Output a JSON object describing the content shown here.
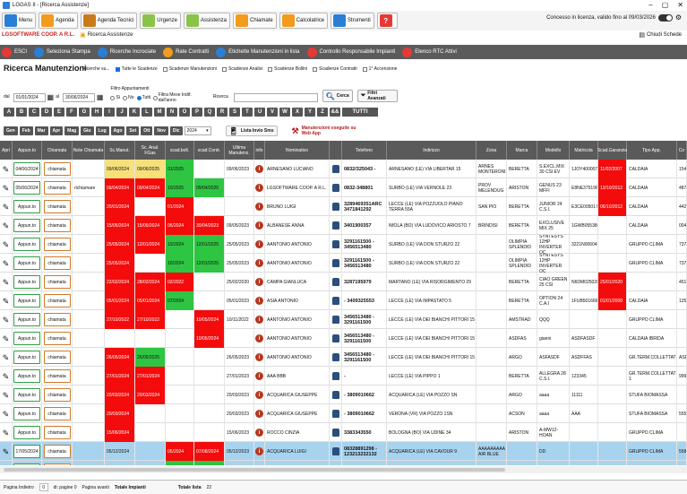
{
  "window": {
    "title": "LGGAS II - [Ricerca Assistenze]",
    "controls": [
      "–",
      "▢",
      "✕"
    ]
  },
  "toolbar": {
    "items": [
      {
        "label": "Menu",
        "icon": "menu-icon",
        "color": "#2a7fd4"
      },
      {
        "label": "Agenda",
        "icon": "agenda-icon",
        "color": "#f29b1c"
      },
      {
        "label": "Agenda Tecnici",
        "icon": "agenda-tecnici-icon",
        "color": "#c97a1a"
      },
      {
        "label": "Urgenze",
        "icon": "urgenze-icon",
        "color": "#8bc34a"
      },
      {
        "label": "Assistenza",
        "icon": "assistenza-icon",
        "color": "#8bc34a"
      },
      {
        "label": "Chiamate",
        "icon": "chiamate-icon",
        "color": "#f29b1c"
      },
      {
        "label": "Calcolatrice",
        "icon": "calcolatrice-icon",
        "color": "#f29b1c"
      },
      {
        "label": "Strumenti",
        "icon": "strumenti-icon",
        "color": "#2a7fd4"
      },
      {
        "label": "?",
        "icon": "help-icon",
        "color": "#e53935"
      }
    ],
    "license": "Concesso in licenza, valido fino al 09/03/2026"
  },
  "breadcrumb": {
    "company": "LGSOFTWARE COOP. A R.L.",
    "current": "Ricerca Assistenze",
    "close_all": "Chiudi Schede"
  },
  "actionbar": {
    "items": [
      {
        "label": "ESCI",
        "color": "#e53935"
      },
      {
        "label": "Seleziona Stampa",
        "color": "#2a7fd4"
      },
      {
        "label": "Ricerche Incrociate",
        "color": "#2a7fd4"
      },
      {
        "label": "Rate Contratti",
        "color": "#f29b1c"
      },
      {
        "label": "Etichette Manutenzioni in lista",
        "color": "#2a7fd4"
      },
      {
        "label": "Controllo Responsabile Impianti",
        "color": "#e53935"
      },
      {
        "label": "Elenco RTC Attivi",
        "color": "#e53935"
      }
    ]
  },
  "page": {
    "heading": "Ricerca Manutenzioni",
    "search_on": "Ricerche su..."
  },
  "search_options": [
    {
      "label": "Tutte le Scadenze",
      "checked": true
    },
    {
      "label": "Scadenze Manutenzioni",
      "checked": false
    },
    {
      "label": "Scadenze Analisi",
      "checked": false
    },
    {
      "label": "Scadenze Bollini",
      "checked": false
    },
    {
      "label": "Scadenze Contratti",
      "checked": false
    },
    {
      "label": "1° Accensione",
      "checked": false
    }
  ],
  "filters": {
    "dal_label": "dal",
    "dal_value": "01/01/2024",
    "al_label": "al",
    "al_value": "30/06/2024",
    "filtro_title": "Filtro Appuntamenti",
    "filtro_options": [
      {
        "label": "Sì",
        "checked": false
      },
      {
        "label": "No",
        "checked": false
      },
      {
        "label": "Tutti",
        "checked": true
      },
      {
        "label": "Filtra Mese Indif. dall'anno",
        "checked": false
      }
    ],
    "ricerca_label": "Ricerca",
    "cerca_label": "Cerca",
    "filtri_avanzati_label": "Filtri Avanzati"
  },
  "letters": [
    "A",
    "B",
    "C",
    "D",
    "E",
    "F",
    "G",
    "H",
    "I",
    "J",
    "K",
    "L",
    "M",
    "N",
    "O",
    "P",
    "Q",
    "R",
    "S",
    "T",
    "U",
    "V",
    "W",
    "X",
    "Y",
    "Z",
    "&&"
  ],
  "letters_all": "TUTTI",
  "months": [
    "Gen",
    "Feb",
    "Mar",
    "Apr",
    "Mag",
    "Giu",
    "Lug",
    "Ago",
    "Set",
    "Ott",
    "Nov",
    "Dic"
  ],
  "year": "2024",
  "lista_invio_sms": "Lista Invio Sms",
  "manutenzioni_web": "Manutenzioni eseguite su Web App",
  "columns": [
    "Apri",
    "Appun.to",
    "Chiamata",
    "Note Chiamata",
    "Sc.Manut.",
    "Sc. Anal. FGas",
    "scad.boll.",
    "scad.Contr.",
    "Ultima Manutenz.",
    "info",
    "Nominativo",
    "",
    "Telefono",
    "Indirizzo",
    "Zona",
    "Marca",
    "Modello",
    "Matricola",
    "Scad.Garanzia",
    "Tipo App.",
    "Co"
  ],
  "rows": [
    {
      "appunto": "04/06/2024",
      "chiamata": "chiamata",
      "note": "",
      "man": "09/06/2024",
      "an": "09/06/2025",
      "boll": "01/2025",
      "contr": "",
      "ult": "09/06/2023",
      "nome": "ARNESANO LUCIANO",
      "tel": "0832/325043 -",
      "ind": "ARNESANO (LE) VIA LIBERTAR 15",
      "zona": "ARNES MONTERONI",
      "marca": "BERETTA",
      "mod": "S.EXCL.MIX 30 CSI EV",
      "matr": "1JOY400007D",
      "gar": "11/02/2007",
      "tipo": "CALDAIA",
      "co": "154"
    },
    {
      "appunto": "05/06/2024",
      "chiamata": "chiamata",
      "note": "richiamare",
      "man": "09/04/2024",
      "an": "09/04/2024",
      "boll": "10/2025",
      "contr": "09/04/2025",
      "ult": "",
      "nome": "LGSOFTWARE COOP. A R.L.",
      "tel": "0832-348801",
      "ind": "SURBO (LE) VIA VERNOLE 23",
      "zona": "PROV MELENDUG",
      "marca": "ARISTON",
      "mod": "GENUS 23 MFFI",
      "matr": "E8NE3751966",
      "gar": "13/10/2012",
      "tipo": "CALDAIA",
      "co": "487"
    },
    {
      "appunto": "Appun.to",
      "chiamata": "chiamata",
      "note": "",
      "man": "20/01/2024",
      "an": "",
      "boll": "01/2024",
      "contr": "",
      "ult": "",
      "nome": "BRUNO LUIGI",
      "tel": "3289469351ARC 3471841292",
      "ind": "LECCE (LE) VIA POZZUOLO PIANO TERRA 55A",
      "zona": "SAN PIO",
      "marca": "BERETTA",
      "mod": "JUNIOR 24 C.S.I.",
      "matr": "E3CE0050171",
      "gar": "06/10/2012",
      "tipo": "CALDAIA",
      "co": "442"
    },
    {
      "appunto": "Appun.to",
      "chiamata": "chiamata",
      "note": "",
      "man": "15/05/2024",
      "an": "15/05/2024",
      "boll": "05/2024",
      "contr": "30/04/2023",
      "ult": "09/05/2023",
      "nome": "ALBANESE ANNA",
      "tel": "3401900357",
      "ind": "IMOLA (BO) VIA LUDOVICO ARIOSTO 7",
      "zona": "BRINDISI",
      "marca": "BERETTA",
      "mod": "EXCLUSIVE MIX 25",
      "matr": "1GWB0553807",
      "gar": "",
      "tipo": "CALDAIA",
      "co": "004"
    },
    {
      "appunto": "Appun.to",
      "chiamata": "chiamata",
      "note": "",
      "man": "25/05/2024",
      "an": "12/01/2024",
      "boll": "10/2024",
      "contr": "12/01/2025",
      "ult": "25/05/2023",
      "nome": "AANTONIO ANTONIO",
      "tel": "3291161500 - 3456513480",
      "ind": "SURBO (LE) VIA DON STURZO 22",
      "zona": "",
      "marca": "OLIMPIA SPLENDID",
      "mod": "SYNTESYS 12HP INVERTER OC",
      "matr": "3221N0060410",
      "gar": "",
      "tipo": "GRUPPO CLIMA",
      "co": "737"
    },
    {
      "appunto": "Appun.to",
      "chiamata": "chiamata",
      "note": "",
      "man": "25/05/2024",
      "an": "",
      "boll": "10/2024",
      "contr": "12/01/2025",
      "ult": "25/05/2023",
      "nome": "AANTONIO ANTONIO",
      "tel": "3291161500 - 3456513480",
      "ind": "SURBO (LE) VIA DON STURZO 22",
      "zona": "",
      "marca": "OLIMPIA SPLENDID",
      "mod": "SYNTESYS 12HP INVERTER OC",
      "matr": "",
      "gar": "",
      "tipo": "GRUPPO CLIMA",
      "co": "737"
    },
    {
      "appunto": "Appun.to",
      "chiamata": "chiamata",
      "note": "",
      "man": "22/02/2024",
      "an": "28/02/2024",
      "boll": "02/2022",
      "contr": "",
      "ult": "25/02/2020",
      "nome": "CAMPA GIANLUCA",
      "tel": "3287195979",
      "ind": "MARTANO (LE) VIA RISORGIMENTO 29",
      "zona": "",
      "marca": "BERETTA",
      "mod": "CIAO GREEN 25 CSI",
      "matr": "N6DM0250280",
      "gar": "25/01/2020",
      "tipo": "",
      "co": "451"
    },
    {
      "appunto": "Appun.to",
      "chiamata": "chiamata",
      "note": "",
      "man": "05/01/2024",
      "an": "05/01/2024",
      "boll": "07/2024",
      "contr": "",
      "ult": "05/01/2023",
      "nome": "ASIA ANTONIO",
      "tel": "- 3409325553",
      "ind": "LECCE (LE) VIA IMPASTATO 5",
      "zona": "",
      "marca": "BERETTA",
      "mod": "OPTION 24 C.A.I",
      "matr": "1FUB501666",
      "gar": "01/01/2008",
      "tipo": "CALDAIA",
      "co": "125"
    },
    {
      "appunto": "Appun.to",
      "chiamata": "chiamata",
      "note": "",
      "man": "27/10/2022",
      "an": "27/10/2022",
      "boll": "",
      "contr": "10/05/2024",
      "ult": "10/11/2022",
      "nome": "AANTONIO ANTONIO",
      "tel": "3456513480 - 3291161500",
      "ind": "LECCE (LE) VIA DEI BIANCHI PITTORI 15",
      "zona": "",
      "marca": "AMSTRAD",
      "mod": "QQQ",
      "matr": "",
      "gar": "",
      "tipo": "GRUPPO CLIMA",
      "co": ""
    },
    {
      "appunto": "Appun.to",
      "chiamata": "chiamata",
      "note": "",
      "man": "",
      "an": "",
      "boll": "",
      "contr": "10/05/2024",
      "ult": "",
      "nome": "AANTONIO ANTONIO",
      "tel": "3456513480 - 3291161500",
      "ind": "LECCE (LE) VIA DEI BIANCHI PITTORI 15",
      "zona": "",
      "marca": "ASDFAS",
      "mod": "gianni",
      "matr": "ASDFASDF",
      "gar": "",
      "tipo": "CALDAIA IBRIDA",
      "co": ""
    },
    {
      "appunto": "Appun.to",
      "chiamata": "chiamata",
      "note": "",
      "man": "26/05/2024",
      "an": "26/05/2025",
      "boll": "",
      "contr": "",
      "ult": "26/05/2023",
      "nome": "AANTONIO ANTONIO",
      "tel": "3456513480 - 3291161500",
      "ind": "LECCE (LE) VIA DEI BIANCHI PITTORI 15",
      "zona": "",
      "marca": "ARGO",
      "mod": "ASFASDF",
      "matr": "ASDFFAS",
      "gar": "",
      "tipo": "GR.TERM.COLLETTAT",
      "co": "ASD"
    },
    {
      "appunto": "Appun.to",
      "chiamata": "chiamata",
      "note": "",
      "man": "27/01/2024",
      "an": "27/01/2024",
      "boll": "",
      "contr": "",
      "ult": "27/01/2023",
      "nome": "AAA BBB",
      "tel": "-",
      "ind": "LECCE (LE) VIA PIPPO 1",
      "zona": "",
      "marca": "BERETTA",
      "mod": "ALLEGRA 28 C.S.I.",
      "matr": "123345",
      "gar": "",
      "tipo": "GR.TERM.COLLETTAT 1",
      "co": "999"
    },
    {
      "appunto": "Appun.to",
      "chiamata": "chiamata",
      "note": "",
      "man": "20/03/2024",
      "an": "20/03/2024",
      "boll": "",
      "contr": "",
      "ult": "20/03/2023",
      "nome": "ACQUARICA GIUSEPPE",
      "tel": "- 3809010662",
      "ind": "ACQUARICA (LE) VIA POZZO SN",
      "zona": "",
      "marca": "ARGO",
      "mod": "aaaa",
      "matr": "11111",
      "gar": "",
      "tipo": "STUFA BIOMASSA",
      "co": ""
    },
    {
      "appunto": "Appun.to",
      "chiamata": "chiamata",
      "note": "",
      "man": "20/03/2024",
      "an": "",
      "boll": "",
      "contr": "",
      "ult": "20/03/2023",
      "nome": "ACQUARICA GIUSEPPE",
      "tel": "- 3809010662",
      "ind": "VERONA (VR) VIA POZZO 1SN",
      "zona": "",
      "marca": "ACSON",
      "mod": "aaaa",
      "matr": "AAA",
      "gar": "",
      "tipo": "STUFA BIOMASSA",
      "co": "555"
    },
    {
      "appunto": "Appun.to",
      "chiamata": "chiamata",
      "note": "",
      "man": "15/06/2024",
      "an": "",
      "boll": "",
      "contr": "",
      "ult": "15/06/2023",
      "nome": "ROCCO CINZIA",
      "tel": "3383343550",
      "ind": "BOLOGNA (BO) VIA UDINE 34",
      "zona": "",
      "marca": "ARISTON",
      "mod": "A-MW12-HOAN",
      "matr": "",
      "gar": "",
      "tipo": "GRUPPO CLIMA",
      "co": ""
    },
    {
      "appunto": "17/05/2024",
      "chiamata": "chiamata",
      "note": "",
      "man": "05/12/2024",
      "an": "",
      "boll": "05/2024",
      "contr": "07/08/2024",
      "ult": "05/12/2023",
      "nome": "ACQUARICA LUIGI",
      "tel": "08328891298 - 123213232132",
      "ind": "ACQUARICA (LE) VIA CAVOUR 9",
      "zona": "AAAAAAAAA AIR BLUE",
      "marca": "",
      "mod": "DD",
      "matr": "",
      "gar": "",
      "tipo": "GRUPPO CLIMA",
      "co": "558"
    },
    {
      "appunto": "13/05/2024",
      "chiamata": "chiamata",
      "note": "",
      "man": "30/05/2025",
      "an": "30/05/2026",
      "boll": "05/2025",
      "contr": "10/05/2026",
      "ult": "30/05/2024",
      "nome": "ZANTONIO ANTONIO",
      "tel": "3456513480 - 3456513480",
      "ind": "LECCE (LE) VIA PIPPO 2",
      "zona": "",
      "marca": "BERETTA",
      "mod": "CIAO 24 C.A.I.",
      "matr": "123456",
      "gar": "",
      "tipo": "GR.TERM.COLLETTAT",
      "co": "001"
    }
  ],
  "pager": {
    "prev": "Pagina Indietro",
    "page_value": "0",
    "of_pages": "di: pagine 0",
    "next": "Pagina avanti",
    "total_label": "Totale Impianti",
    "total_list_label": "Totale lista",
    "total_list_value": "22"
  }
}
